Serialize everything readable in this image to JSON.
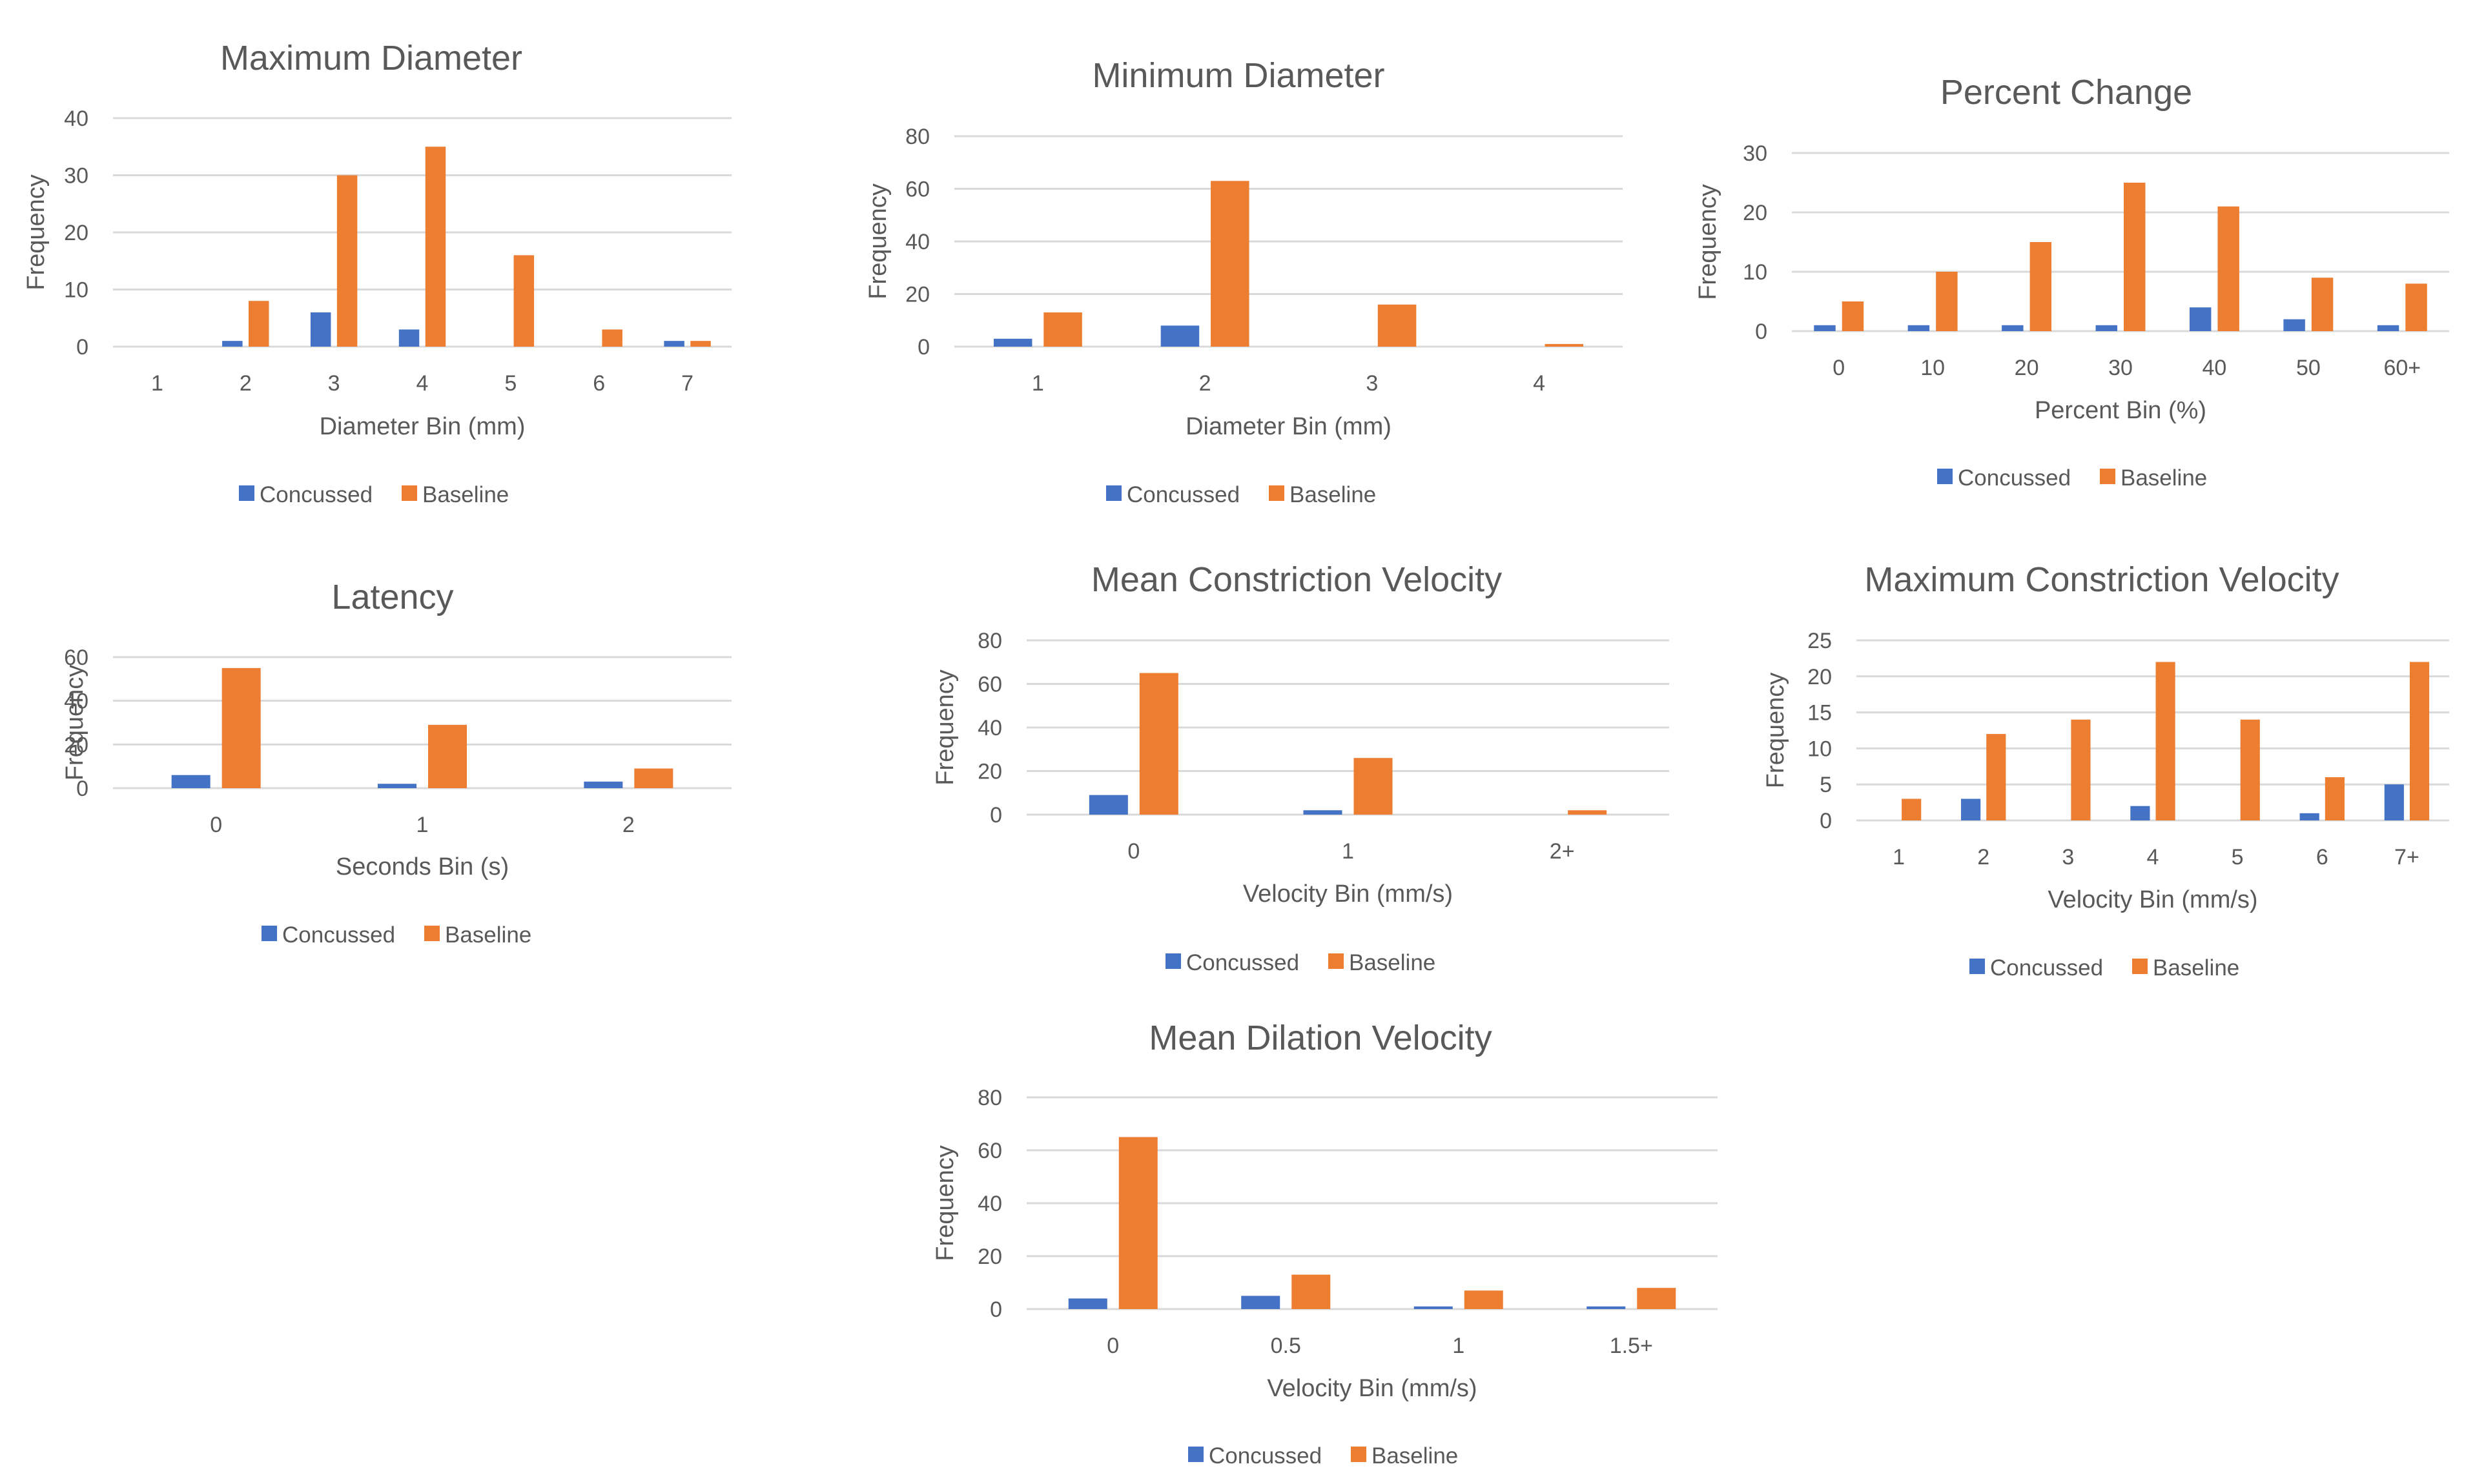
{
  "colors": {
    "concussed": "#4472c4",
    "baseline": "#ed7d31",
    "grid": "#d9d9d9",
    "text": "#595959"
  },
  "legend": {
    "concussed": "Concussed",
    "baseline": "Baseline"
  },
  "chart_data": [
    {
      "type": "bar",
      "title": "Maximum Diameter",
      "xlabel": "Diameter Bin (mm)",
      "ylabel": "Frequency",
      "categories": [
        "1",
        "2",
        "3",
        "4",
        "5",
        "6",
        "7"
      ],
      "ylim": [
        0,
        40
      ],
      "yticks": [
        0,
        10,
        20,
        30,
        40
      ],
      "series": [
        {
          "name": "Concussed",
          "values": [
            0,
            1,
            6,
            3,
            0,
            0,
            1
          ]
        },
        {
          "name": "Baseline",
          "values": [
            0,
            8,
            30,
            35,
            16,
            3,
            1
          ]
        }
      ]
    },
    {
      "type": "bar",
      "title": "Minimum Diameter",
      "xlabel": "Diameter Bin (mm)",
      "ylabel": "Frequency",
      "categories": [
        "1",
        "2",
        "3",
        "4"
      ],
      "ylim": [
        0,
        80
      ],
      "yticks": [
        0,
        20,
        40,
        60,
        80
      ],
      "series": [
        {
          "name": "Concussed",
          "values": [
            3,
            8,
            0,
            0
          ]
        },
        {
          "name": "Baseline",
          "values": [
            13,
            63,
            16,
            1
          ]
        }
      ]
    },
    {
      "type": "bar",
      "title": "Percent Change",
      "xlabel": "Percent Bin (%)",
      "ylabel": "Frequency",
      "categories": [
        "0",
        "10",
        "20",
        "30",
        "40",
        "50",
        "60+"
      ],
      "ylim": [
        0,
        30
      ],
      "yticks": [
        0,
        10,
        20,
        30
      ],
      "series": [
        {
          "name": "Concussed",
          "values": [
            1,
            1,
            1,
            1,
            4,
            2,
            1
          ]
        },
        {
          "name": "Baseline",
          "values": [
            5,
            10,
            15,
            25,
            21,
            9,
            8
          ]
        }
      ]
    },
    {
      "type": "bar",
      "title": "Latency",
      "xlabel": "Seconds Bin (s)",
      "ylabel": "Frequency",
      "categories": [
        "0",
        "1",
        "2"
      ],
      "ylim": [
        0,
        60
      ],
      "yticks": [
        0,
        20,
        40,
        60
      ],
      "series": [
        {
          "name": "Concussed",
          "values": [
            6,
            2,
            3
          ]
        },
        {
          "name": "Baseline",
          "values": [
            55,
            29,
            9
          ]
        }
      ]
    },
    {
      "type": "bar",
      "title": "Mean Constriction Velocity",
      "xlabel": "Velocity Bin (mm/s)",
      "ylabel": "Frequency",
      "categories": [
        "0",
        "1",
        "2+"
      ],
      "ylim": [
        0,
        80
      ],
      "yticks": [
        0,
        20,
        40,
        60,
        80
      ],
      "series": [
        {
          "name": "Concussed",
          "values": [
            9,
            2,
            0
          ]
        },
        {
          "name": "Baseline",
          "values": [
            65,
            26,
            2
          ]
        }
      ]
    },
    {
      "type": "bar",
      "title": "Maximum Constriction Velocity",
      "xlabel": "Velocity Bin (mm/s)",
      "ylabel": "Frequency",
      "categories": [
        "1",
        "2",
        "3",
        "4",
        "5",
        "6",
        "7+"
      ],
      "ylim": [
        0,
        25
      ],
      "yticks": [
        0,
        5,
        10,
        15,
        20,
        25
      ],
      "series": [
        {
          "name": "Concussed",
          "values": [
            0,
            3,
            0,
            2,
            0,
            1,
            5
          ]
        },
        {
          "name": "Baseline",
          "values": [
            3,
            12,
            14,
            22,
            14,
            6,
            22
          ]
        }
      ]
    },
    {
      "type": "bar",
      "title": "Mean Dilation Velocity",
      "xlabel": "Velocity Bin (mm/s)",
      "ylabel": "Frequency",
      "categories": [
        "0",
        "0.5",
        "1",
        "1.5+"
      ],
      "ylim": [
        0,
        80
      ],
      "yticks": [
        0,
        20,
        40,
        60,
        80
      ],
      "series": [
        {
          "name": "Concussed",
          "values": [
            4,
            5,
            1,
            1
          ]
        },
        {
          "name": "Baseline",
          "values": [
            65,
            13,
            7,
            8
          ]
        }
      ]
    }
  ]
}
